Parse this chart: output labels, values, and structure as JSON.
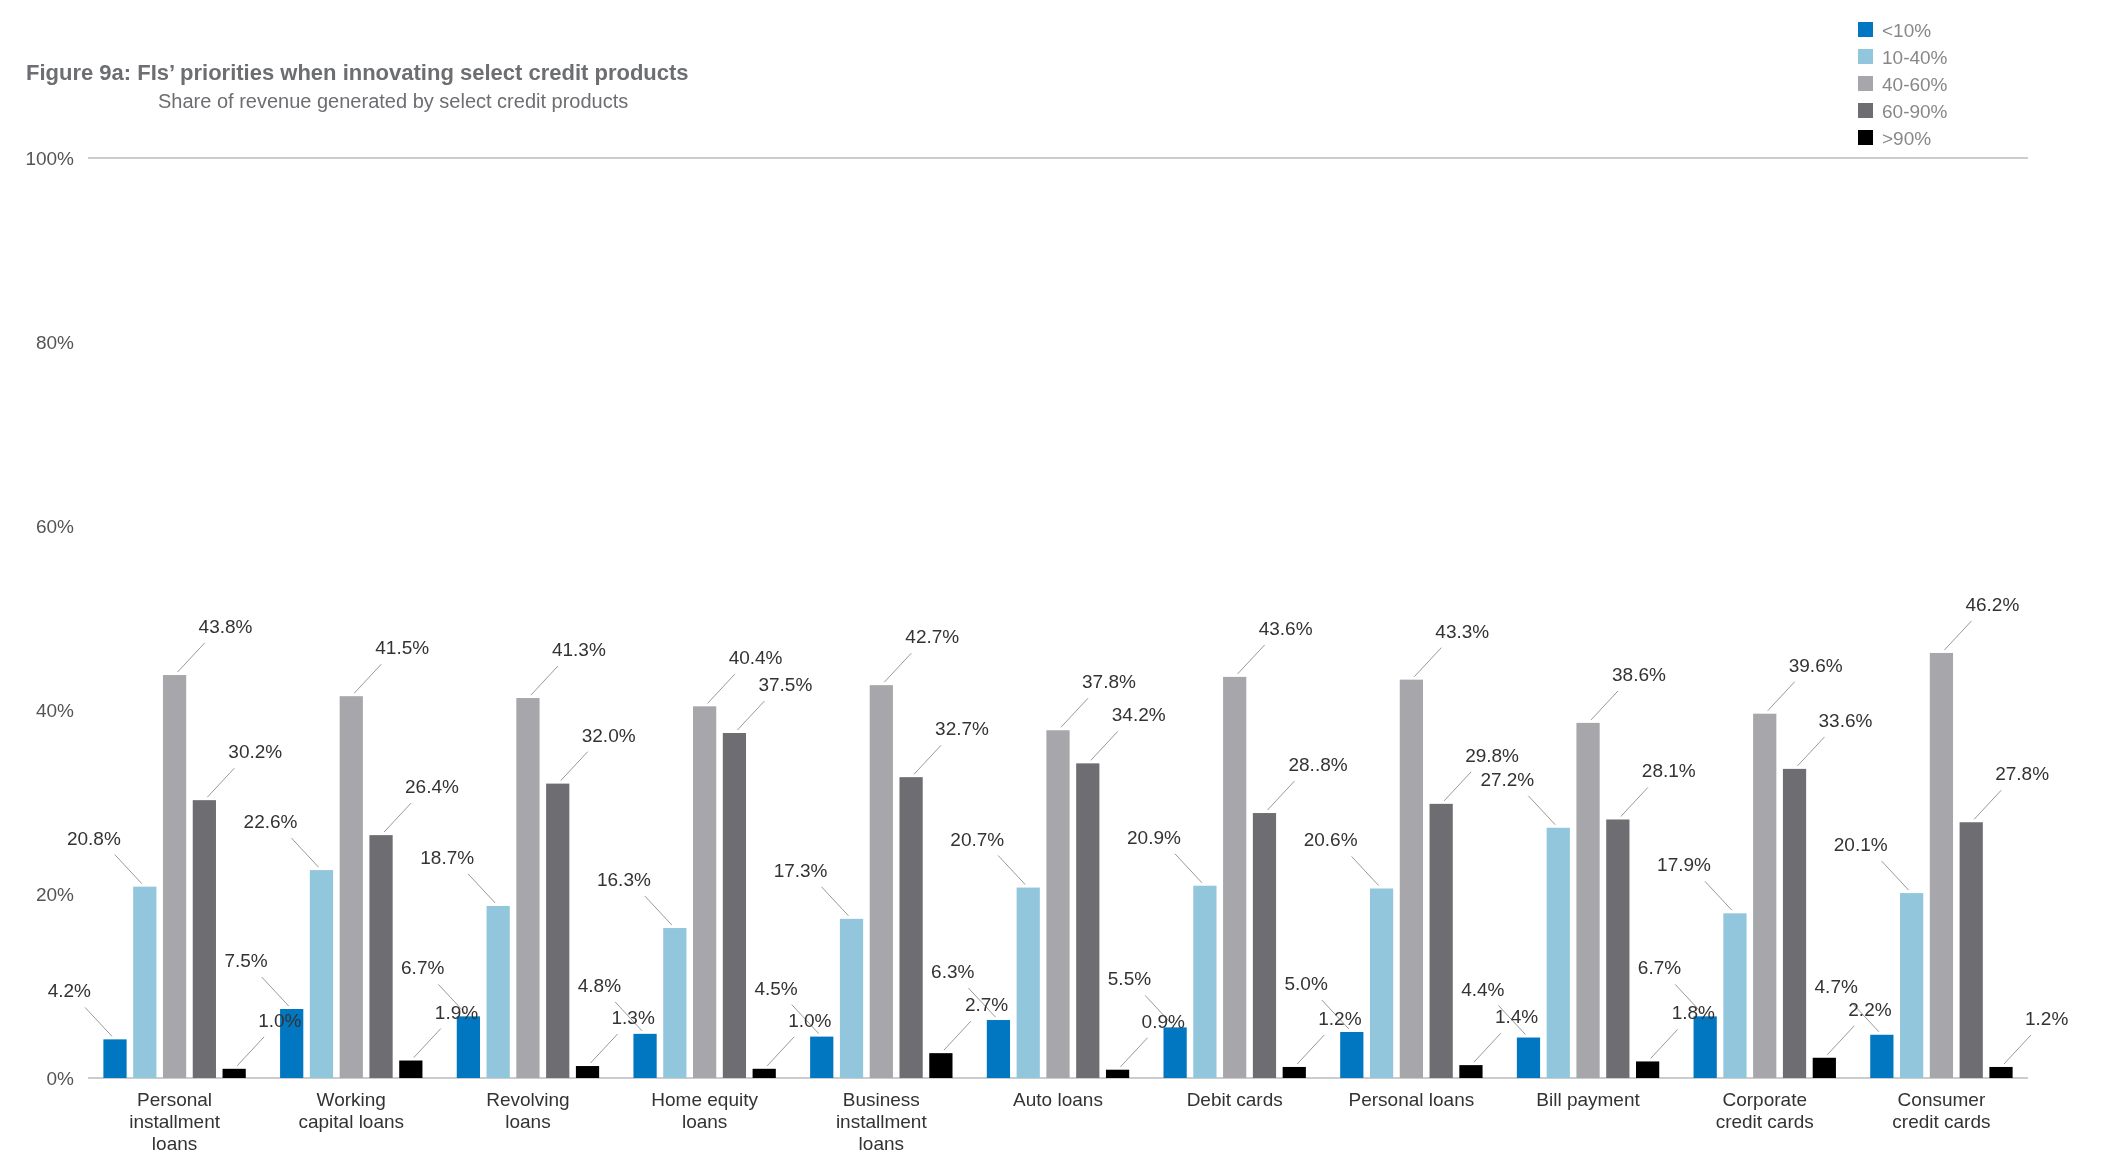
{
  "chart_data": {
    "type": "bar",
    "title": "Figure 9a: FIs’ priorities when innovating select credit products",
    "subtitle": "Share of revenue generated by select credit products",
    "categories": [
      "Personal installment loans",
      "Working capital loans",
      "Revolving loans",
      "Home equity loans",
      "Business installment loans",
      "Auto loans",
      "Debit cards",
      "Personal loans",
      "Bill payment",
      "Corporate credit cards",
      "Consumer credit cards"
    ],
    "series": [
      {
        "name": "<10%",
        "color": "#0077c0",
        "values": [
          4.2,
          7.5,
          6.7,
          4.8,
          4.5,
          6.3,
          5.5,
          5.0,
          4.4,
          6.7,
          4.7
        ],
        "value_labels": [
          "4.2%",
          "7.5%",
          "6.7%",
          "4.8%",
          "4.5%",
          "6.3%",
          "5.5%",
          "5.0%",
          "4.4%",
          "6.7%",
          "4.7%"
        ]
      },
      {
        "name": "10-40%",
        "color": "#92c6dc",
        "values": [
          20.8,
          22.6,
          18.7,
          16.3,
          17.3,
          20.7,
          20.9,
          20.6,
          27.2,
          17.9,
          20.1
        ],
        "value_labels": [
          "20.8%",
          "22.6%",
          "18.7%",
          "16.3%",
          "17.3%",
          "20.7%",
          "20.9%",
          "20.6%",
          "27.2%",
          "17.9%",
          "20.1%"
        ]
      },
      {
        "name": "40-60%",
        "color": "#a7a7ab",
        "values": [
          43.8,
          41.5,
          41.3,
          40.4,
          42.7,
          37.8,
          43.6,
          43.3,
          38.6,
          39.6,
          46.2
        ],
        "value_labels": [
          "43.8%",
          "41.5%",
          "41.3%",
          "40.4%",
          "42.7%",
          "37.8%",
          "43.6%",
          "43.3%",
          "38.6%",
          "39.6%",
          "46.2%"
        ]
      },
      {
        "name": "60-90%",
        "color": "#6e6d72",
        "values": [
          30.2,
          26.4,
          32.0,
          37.5,
          32.7,
          34.2,
          28.8,
          29.8,
          28.1,
          33.6,
          27.8
        ],
        "value_labels": [
          "30.2%",
          "26.4%",
          "32.0%",
          "37.5%",
          "32.7%",
          "34.2%",
          "28..8%",
          "29.8%",
          "28.1%",
          "33.6%",
          "27.8%"
        ]
      },
      {
        "name": ">90%",
        "color": "#000000",
        "values": [
          1.0,
          1.9,
          1.3,
          1.0,
          2.7,
          0.9,
          1.2,
          1.4,
          1.8,
          2.2,
          1.2
        ],
        "value_labels": [
          "1.0%",
          "1.9%",
          "1.3%",
          "1.0%",
          "2.7%",
          "0.9%",
          "1.2%",
          "1.4%",
          "1.8%",
          "2.2%",
          "1.2%"
        ]
      }
    ],
    "ylim": [
      0,
      100
    ],
    "yticks": [
      {
        "value": 0,
        "label": "0%"
      },
      {
        "value": 20,
        "label": "20%"
      },
      {
        "value": 40,
        "label": "40%"
      },
      {
        "value": 60,
        "label": "60%"
      },
      {
        "value": 80,
        "label": "80%"
      },
      {
        "value": 100,
        "label": "100%"
      }
    ],
    "grid": false,
    "legend": "top right"
  }
}
